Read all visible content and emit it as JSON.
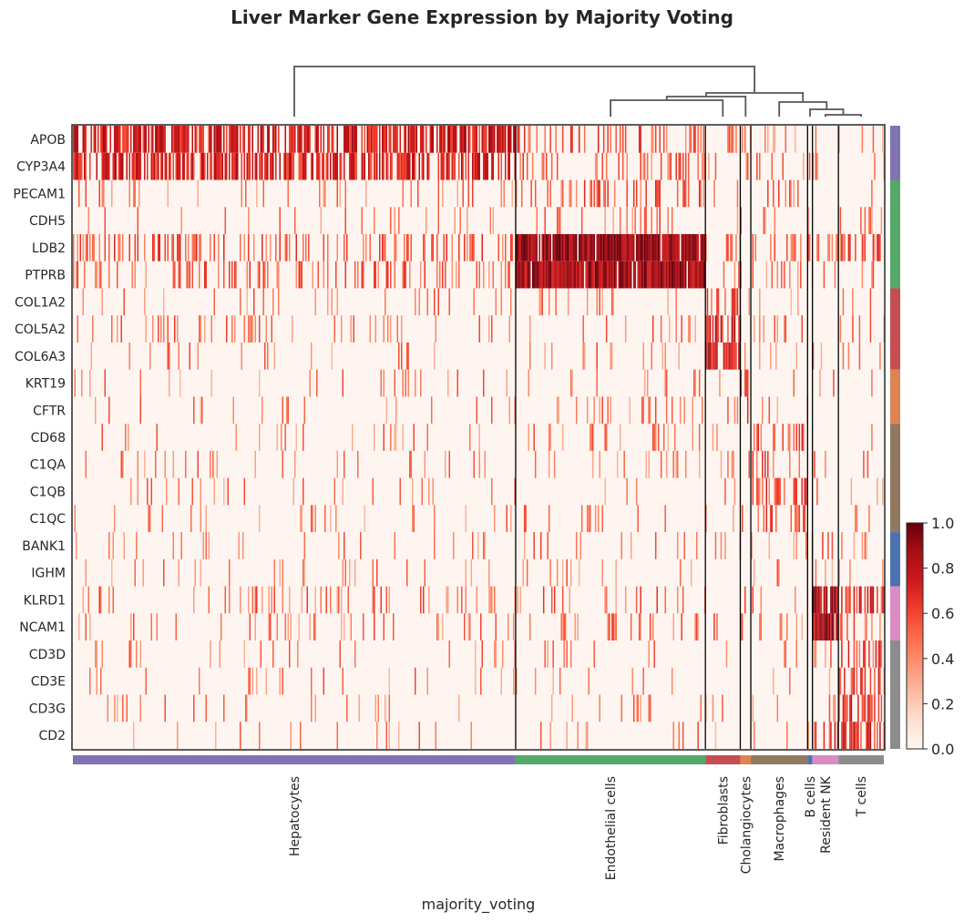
{
  "chart_data": {
    "type": "heatmap",
    "title": "Liver Marker Gene Expression by Majority Voting",
    "xlabel": "majority_voting",
    "genes": [
      "APOB",
      "CYP3A4",
      "PECAM1",
      "CDH5",
      "LDB2",
      "PTPRB",
      "COL1A2",
      "COL5A2",
      "COL6A3",
      "KRT19",
      "CFTR",
      "CD68",
      "C1QA",
      "C1QB",
      "C1QC",
      "BANK1",
      "IGHM",
      "KLRD1",
      "NCAM1",
      "CD3D",
      "CD3E",
      "CD3G",
      "CD2"
    ],
    "gene_groups": [
      {
        "group": "Hepatocytes",
        "genes": [
          "APOB",
          "CYP3A4"
        ],
        "color": "#8172b3"
      },
      {
        "group": "Endothelial cells",
        "genes": [
          "PECAM1",
          "CDH5",
          "LDB2",
          "PTPRB"
        ],
        "color": "#55a868"
      },
      {
        "group": "Fibroblasts",
        "genes": [
          "COL1A2",
          "COL5A2",
          "COL6A3"
        ],
        "color": "#c44e52"
      },
      {
        "group": "Cholangiocytes",
        "genes": [
          "KRT19",
          "CFTR"
        ],
        "color": "#dd8452"
      },
      {
        "group": "Macrophages",
        "genes": [
          "CD68",
          "C1QA",
          "C1QB",
          "C1QC"
        ],
        "color": "#937860"
      },
      {
        "group": "B cells",
        "genes": [
          "BANK1",
          "IGHM"
        ],
        "color": "#4c72b0"
      },
      {
        "group": "Resident NK",
        "genes": [
          "KLRD1",
          "NCAM1"
        ],
        "color": "#da8bc3"
      },
      {
        "group": "T cells",
        "genes": [
          "CD3D",
          "CD3E",
          "CD3G",
          "CD2"
        ],
        "color": "#8c8c8c"
      }
    ],
    "cell_groups": [
      {
        "name": "Hepatocytes",
        "fraction": 0.546,
        "color": "#8172b3"
      },
      {
        "name": "Endothelial cells",
        "fraction": 0.234,
        "color": "#55a868"
      },
      {
        "name": "Fibroblasts",
        "fraction": 0.043,
        "color": "#c44e52"
      },
      {
        "name": "Cholangiocytes",
        "fraction": 0.013,
        "color": "#dd8452"
      },
      {
        "name": "Macrophages",
        "fraction": 0.07,
        "color": "#937860"
      },
      {
        "name": "B cells",
        "fraction": 0.006,
        "color": "#4c72b0"
      },
      {
        "name": "Resident NK",
        "fraction": 0.032,
        "color": "#da8bc3"
      },
      {
        "name": "T cells",
        "fraction": 0.056,
        "color": "#8c8c8c"
      }
    ],
    "mean_expression": [
      [
        0.55,
        0.22,
        0.05,
        0.1,
        0.04,
        0.02,
        0.03,
        0.02
      ],
      [
        0.5,
        0.18,
        0.05,
        0.08,
        0.04,
        0.02,
        0.03,
        0.02
      ],
      [
        0.04,
        0.2,
        0.03,
        0.03,
        0.08,
        0.02,
        0.02,
        0.02
      ],
      [
        0.03,
        0.1,
        0.02,
        0.02,
        0.05,
        0.01,
        0.01,
        0.01
      ],
      [
        0.2,
        0.85,
        0.15,
        0.1,
        0.1,
        0.2,
        0.25,
        0.25
      ],
      [
        0.15,
        0.8,
        0.04,
        0.03,
        0.04,
        0.03,
        0.05,
        0.05
      ],
      [
        0.01,
        0.02,
        0.3,
        0.02,
        0.02,
        0.01,
        0.01,
        0.01
      ],
      [
        0.06,
        0.05,
        0.55,
        0.05,
        0.04,
        0.02,
        0.02,
        0.02
      ],
      [
        0.02,
        0.03,
        0.6,
        0.04,
        0.03,
        0.01,
        0.01,
        0.01
      ],
      [
        0.01,
        0.02,
        0.02,
        0.3,
        0.02,
        0.01,
        0.01,
        0.01
      ],
      [
        0.01,
        0.05,
        0.02,
        0.45,
        0.02,
        0.01,
        0.01,
        0.01
      ],
      [
        0.01,
        0.02,
        0.02,
        0.02,
        0.25,
        0.02,
        0.02,
        0.02
      ],
      [
        0.01,
        0.02,
        0.05,
        0.02,
        0.2,
        0.01,
        0.01,
        0.01
      ],
      [
        0.01,
        0.02,
        0.03,
        0.02,
        0.25,
        0.01,
        0.01,
        0.01
      ],
      [
        0.01,
        0.02,
        0.02,
        0.02,
        0.2,
        0.01,
        0.01,
        0.01
      ],
      [
        0.02,
        0.04,
        0.02,
        0.02,
        0.04,
        0.3,
        0.12,
        0.08
      ],
      [
        0.01,
        0.02,
        0.01,
        0.01,
        0.02,
        0.25,
        0.04,
        0.03
      ],
      [
        0.08,
        0.1,
        0.05,
        0.04,
        0.04,
        0.1,
        0.7,
        0.4
      ],
      [
        0.05,
        0.08,
        0.1,
        0.03,
        0.03,
        0.05,
        0.75,
        0.15
      ],
      [
        0.01,
        0.01,
        0.01,
        0.01,
        0.01,
        0.02,
        0.05,
        0.3
      ],
      [
        0.01,
        0.01,
        0.01,
        0.01,
        0.01,
        0.02,
        0.05,
        0.35
      ],
      [
        0.01,
        0.01,
        0.01,
        0.01,
        0.01,
        0.02,
        0.05,
        0.4
      ],
      [
        0.02,
        0.02,
        0.01,
        0.01,
        0.01,
        0.05,
        0.3,
        0.45
      ]
    ],
    "dendrogram_order": [
      "Hepatocytes",
      "Endothelial cells",
      "Fibroblasts",
      "Cholangiocytes",
      "Macrophages",
      "B cells",
      "Resident NK",
      "T cells"
    ],
    "colorbar": {
      "cmap": "Reds",
      "vmin": 0.0,
      "vmax": 1.0,
      "ticks": [
        "0.0",
        "0.2",
        "0.4",
        "0.6",
        "0.8",
        "1.0"
      ]
    },
    "grid": false
  }
}
